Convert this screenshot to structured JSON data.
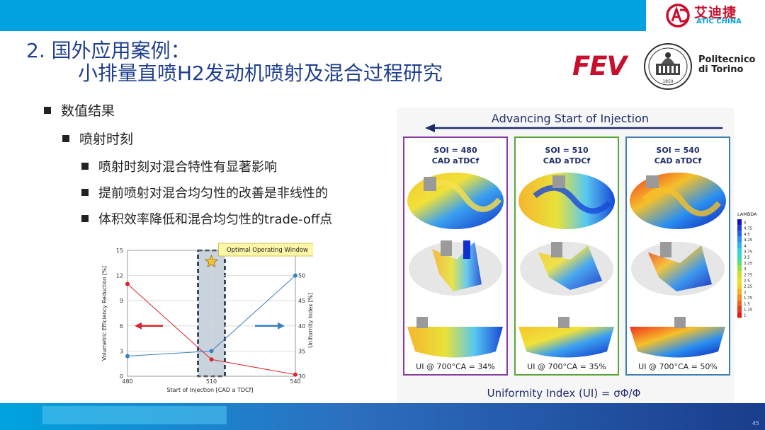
{
  "header": {
    "logo_cn": "艾迪捷",
    "logo_en": "ATIC CHINA"
  },
  "title": {
    "line1": "2. 国外应用案例：",
    "line2": "小排量直喷H2发动机喷射及混合过程研究"
  },
  "partners": {
    "fev": "FEV",
    "polito_line1": "Politecnico",
    "polito_line2": "di Torino",
    "polito_seal_year": "1859"
  },
  "bullets": [
    {
      "level": 1,
      "text": "数值结果"
    },
    {
      "level": 2,
      "text": "喷射时刻"
    },
    {
      "level": 3,
      "text": "喷射时刻对混合特性有显著影响"
    },
    {
      "level": 3,
      "text": "提前喷射对混合均匀性的改善是非线性的"
    },
    {
      "level": 3,
      "text": "体积效率降低和混合均匀性的trade-off点"
    }
  ],
  "chart_data": {
    "type": "line",
    "x": [
      480,
      510,
      540
    ],
    "xlabel": "Start of Injection  [CAD a TDCf]",
    "ylabel": "Volumetric Efficiency Reduction [%]",
    "y2label": "Uniformity Index [%]",
    "ylim": [
      0,
      15
    ],
    "y2lim": [
      30,
      55
    ],
    "yticks": [
      0,
      3,
      6,
      9,
      12,
      15
    ],
    "y2ticks": [
      30,
      35,
      40,
      45,
      50
    ],
    "xticks": [
      480,
      510,
      540
    ],
    "series": [
      {
        "axis": "left",
        "color": "#d9262c",
        "values": [
          11,
          2,
          0.2
        ]
      },
      {
        "axis": "right",
        "color": "#3a7fc1",
        "values": [
          34,
          35,
          50
        ]
      }
    ],
    "annotation": "Optimal Operating Window",
    "highlight_x": 510,
    "grid": true
  },
  "figure": {
    "header": "Advancing Start of Injection",
    "panels": [
      {
        "soi": "SOI = 480",
        "cad": "CAD aTDCf",
        "ui": "UI @ 700°CA = 34%",
        "border": "#8a3aa0"
      },
      {
        "soi": "SOI = 510",
        "cad": "CAD aTDCf",
        "ui": "UI @ 700°CA = 35%",
        "border": "#5aa53a"
      },
      {
        "soi": "SOI = 540",
        "cad": "CAD aTDCf",
        "ui": "UI @ 700°CA = 50%",
        "border": "#3f7fb5"
      }
    ],
    "legend_title": "LAMBDA",
    "legend_values": [
      "5",
      "4.75",
      "4.5",
      "4.25",
      "4",
      "3.75",
      "3.5",
      "3.25",
      "3",
      "2.75",
      "2.5",
      "2.25",
      "2",
      "1.75",
      "1.5",
      "1.25",
      "1"
    ],
    "footer": "Uniformity Index (UI) = σΦ/Φ"
  },
  "footer": {
    "page": "45"
  }
}
